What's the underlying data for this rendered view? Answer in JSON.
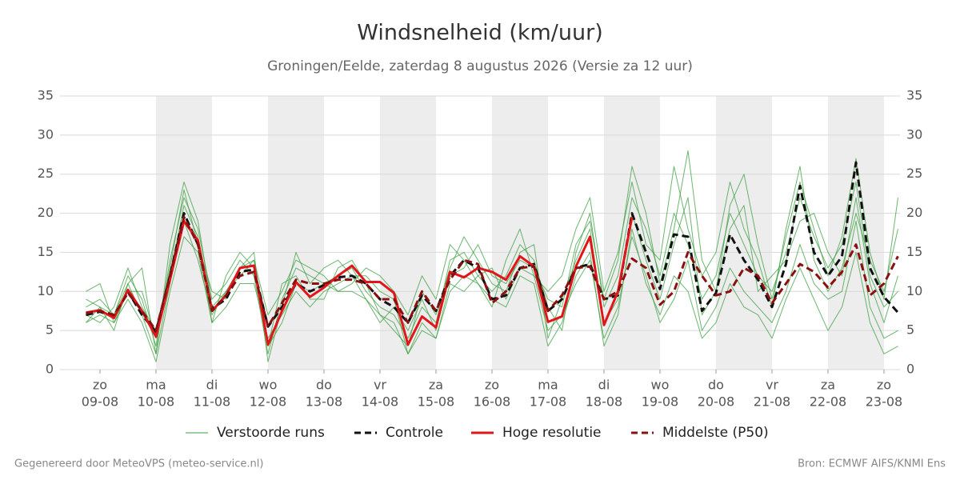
{
  "chart_data": {
    "type": "line",
    "title": "Windsnelheid (km/uur)",
    "subtitle": "Groningen/Eelde, zaterdag  8 augustus 2026 (Versie za 12 uur)",
    "footer_left": "Gegenereerd door MeteoVPS (meteo-service.nl)",
    "footer_right": "Bron: ECMWF AIFS/KNMI Ens",
    "xlim": [
      -0.714,
      14.286
    ],
    "ylim": [
      0,
      35
    ],
    "yticks": [
      0,
      5,
      10,
      15,
      20,
      25,
      30,
      35
    ],
    "xticks": [
      {
        "value": 0,
        "label": "zo"
      },
      {
        "value": 1,
        "label": "ma"
      },
      {
        "value": 2,
        "label": "di"
      },
      {
        "value": 3,
        "label": "wo"
      },
      {
        "value": 4,
        "label": "do"
      },
      {
        "value": 5,
        "label": "vr"
      },
      {
        "value": 6,
        "label": "za"
      },
      {
        "value": 7,
        "label": "zo"
      },
      {
        "value": 8,
        "label": "ma"
      },
      {
        "value": 9,
        "label": "di"
      },
      {
        "value": 10,
        "label": "wo"
      },
      {
        "value": 11,
        "label": "do"
      },
      {
        "value": 12,
        "label": "vr"
      },
      {
        "value": 13,
        "label": "za"
      },
      {
        "value": 14,
        "label": "zo"
      }
    ],
    "xtick_dates": [
      "09-08",
      "10-08",
      "11-08",
      "12-08",
      "13-08",
      "14-08",
      "15-08",
      "16-08",
      "17-08",
      "18-08",
      "19-08",
      "20-08",
      "21-08",
      "22-08",
      "23-08"
    ],
    "grid": true,
    "x": [
      -0.25,
      0,
      0.25,
      0.5,
      0.75,
      1,
      1.25,
      1.5,
      1.75,
      2,
      2.25,
      2.5,
      2.75,
      3,
      3.25,
      3.5,
      3.75,
      4,
      4.25,
      4.5,
      4.75,
      5,
      5.25,
      5.5,
      5.75,
      6,
      6.25,
      6.5,
      6.75,
      7,
      7.25,
      7.5,
      7.75,
      8,
      8.25,
      8.5,
      8.75,
      9,
      9.25,
      9.5,
      9.75,
      10,
      10.25,
      10.5,
      10.75,
      11,
      11.25,
      11.5,
      11.75,
      12,
      12.25,
      12.5,
      12.75,
      13,
      13.25,
      13.5,
      13.75,
      14,
      14.25
    ],
    "ensemble": {
      "name": "Verstoorde runs",
      "color": "#3a9e3f",
      "members": [
        [
          8,
          9,
          7,
          12,
          9,
          3,
          14,
          22,
          18,
          9,
          11,
          14,
          12,
          2,
          9,
          13,
          12,
          11,
          12,
          13,
          10,
          8,
          7,
          4,
          8,
          6,
          14,
          15,
          12,
          10,
          12,
          16,
          14,
          8,
          5,
          15,
          20,
          8,
          12,
          22,
          18,
          12,
          20,
          16,
          9,
          12,
          20,
          16,
          12,
          10,
          15,
          22,
          17,
          13,
          16,
          24,
          12,
          8,
          10
        ],
        [
          6,
          7,
          6,
          9,
          6,
          1,
          10,
          17,
          15,
          6,
          8,
          11,
          11,
          4,
          7,
          10,
          8,
          10,
          11,
          12,
          12,
          10,
          9,
          2,
          6,
          4,
          11,
          10,
          12,
          13,
          9,
          13,
          12,
          5,
          7,
          11,
          14,
          4,
          8,
          17,
          12,
          6,
          9,
          14,
          5,
          8,
          13,
          10,
          8,
          6,
          10,
          16,
          11,
          9,
          10,
          19,
          8,
          4,
          5
        ],
        [
          9,
          8,
          5,
          11,
          13,
          2,
          16,
          24,
          19,
          8,
          10,
          13,
          14,
          7,
          10,
          14,
          13,
          12,
          10,
          11,
          13,
          12,
          10,
          7,
          12,
          9,
          16,
          14,
          11,
          8,
          14,
          18,
          12,
          10,
          12,
          18,
          22,
          10,
          15,
          24,
          16,
          14,
          26,
          18,
          12,
          15,
          24,
          18,
          14,
          8,
          18,
          26,
          14,
          10,
          13,
          20,
          14,
          10,
          18
        ],
        [
          7,
          6,
          8,
          13,
          8,
          5,
          12,
          21,
          17,
          6,
          12,
          15,
          13,
          3,
          11,
          12,
          9,
          9,
          13,
          14,
          11,
          7,
          5,
          3,
          10,
          7,
          13,
          17,
          14,
          11,
          10,
          15,
          16,
          4,
          9,
          14,
          18,
          6,
          9,
          20,
          14,
          9,
          16,
          22,
          7,
          10,
          18,
          21,
          10,
          12,
          14,
          19,
          20,
          15,
          12,
          22,
          11,
          6,
          12
        ],
        [
          10,
          11,
          6,
          10,
          10,
          4,
          13,
          23,
          16,
          10,
          9,
          13,
          15,
          1,
          8,
          15,
          11,
          13,
          14,
          12,
          9,
          6,
          8,
          5,
          9,
          5,
          12,
          13,
          16,
          12,
          11,
          14,
          13,
          9,
          8,
          16,
          19,
          9,
          14,
          26,
          20,
          11,
          18,
          28,
          14,
          10,
          21,
          25,
          16,
          9,
          17,
          24,
          18,
          12,
          17,
          27,
          15,
          9,
          22
        ],
        [
          6,
          8,
          7,
          11,
          7,
          2,
          11,
          19,
          14,
          7,
          10,
          12,
          14,
          3,
          6,
          11,
          10,
          11,
          10,
          10,
          9,
          7,
          6,
          2,
          5,
          4,
          10,
          12,
          11,
          9,
          8,
          12,
          11,
          3,
          6,
          12,
          15,
          3,
          7,
          18,
          11,
          7,
          12,
          10,
          4,
          6,
          11,
          8,
          7,
          4,
          9,
          13,
          9,
          5,
          8,
          15,
          6,
          2,
          3
        ]
      ]
    },
    "series": [
      {
        "name": "Controle",
        "color": "#111111",
        "dash": true,
        "values": [
          7,
          7.4,
          6.8,
          10,
          7,
          4.8,
          12,
          20,
          16,
          7.8,
          9,
          12.5,
          12.8,
          5.5,
          8,
          11,
          10,
          10.8,
          11.8,
          12,
          11,
          9,
          8,
          6,
          9.5,
          7.5,
          12,
          14,
          13,
          9,
          9.5,
          13,
          13.5,
          7.5,
          9,
          13,
          13.5,
          9,
          9.5,
          20,
          15,
          10.3,
          17.3,
          17,
          7.5,
          9.8,
          17.3,
          14,
          11.5,
          8,
          13.5,
          23.5,
          15,
          12,
          14.5,
          26.5,
          13,
          9.3,
          7.3
        ]
      },
      {
        "name": "Hoge resolutie",
        "color": "#e0161b",
        "dash": false,
        "values": [
          7.3,
          7.6,
          6.6,
          10.2,
          7.5,
          4.2,
          11.5,
          19,
          16.5,
          7.5,
          9.5,
          13,
          13.3,
          3.2,
          7.5,
          11.2,
          9.3,
          10.5,
          12,
          13.3,
          11.2,
          11.2,
          9.8,
          3.2,
          6.8,
          5.4,
          12.5,
          11.8,
          13,
          12.5,
          11.5,
          14.5,
          13.2,
          6.1,
          6.8,
          13.2,
          17,
          5.7,
          10,
          19.5,
          null,
          null,
          null,
          null,
          null,
          null,
          null,
          null,
          null,
          null,
          null,
          null,
          null,
          null,
          null,
          null,
          null,
          null,
          null
        ]
      },
      {
        "name": "Middelste (P50)",
        "color": "#8b1010",
        "dash": true,
        "values": [
          7.2,
          7.5,
          7,
          9.8,
          7.5,
          5,
          12,
          19.5,
          16,
          7.5,
          9.5,
          12,
          12.5,
          5.5,
          8.5,
          11.5,
          11,
          11,
          11.5,
          11.5,
          11,
          9,
          9,
          6,
          10,
          7.5,
          11.5,
          14,
          13.5,
          8.5,
          10,
          13,
          13.2,
          7.5,
          9.5,
          13,
          13.2,
          9,
          10,
          14.2,
          13,
          8.3,
          10,
          15,
          12,
          9.5,
          10,
          13,
          12,
          8.5,
          11,
          13.5,
          12.5,
          10.5,
          12.5,
          16,
          9.5,
          11,
          14.5
        ]
      }
    ]
  }
}
